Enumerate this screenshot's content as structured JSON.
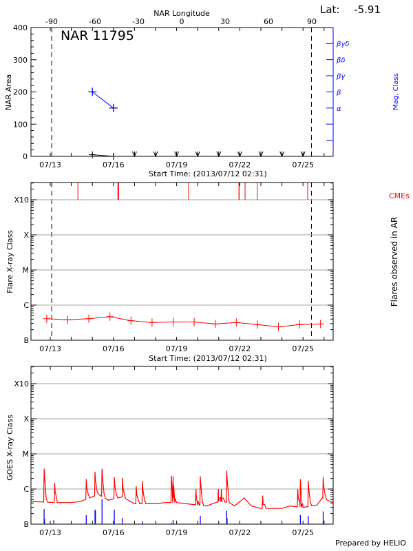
{
  "header": {
    "lat_label": "Lat:",
    "lat_value": "-5.91",
    "region_title": "NAR 11795",
    "footer": "Prepared by HELIO"
  },
  "colors": {
    "area": "#000000",
    "mag_class": "#0000ff",
    "flares": "#ff0000",
    "cmes": "#ff0000",
    "goes": "#ff0000",
    "goes_events": "#0000ff",
    "grid": "#a0a0a0"
  },
  "chart_data": [
    {
      "type": "line",
      "title": "NAR 11795",
      "xlabel": "Start Time: (2013/07/12 02:31)",
      "ylabel": "NAR Area",
      "y2label": "Mag. Class",
      "top_xlabel": "NAR Longitude",
      "xlim": [
        "2013-07-12T02:31",
        "2013-07-26T10:30"
      ],
      "xticks": [
        {
          "t": "2013-07-13T00:00",
          "label": "07/13"
        },
        {
          "t": "2013-07-16T00:00",
          "label": "07/16"
        },
        {
          "t": "2013-07-19T00:00",
          "label": "07/19"
        },
        {
          "t": "2013-07-22T00:00",
          "label": "07/22"
        },
        {
          "t": "2013-07-25T00:00",
          "label": "07/25"
        }
      ],
      "ylim": [
        0,
        400
      ],
      "yticks": [
        {
          "v": 0,
          "label": "0"
        },
        {
          "v": 100,
          "label": "100"
        },
        {
          "v": 200,
          "label": "200"
        },
        {
          "v": 300,
          "label": "300"
        },
        {
          "v": 400,
          "label": "400"
        }
      ],
      "longitude_ticks": [
        {
          "v": -90,
          "label": "-90"
        },
        {
          "v": -60,
          "label": "-60"
        },
        {
          "v": -30,
          "label": "-30"
        },
        {
          "v": 0,
          "label": "0"
        },
        {
          "v": 30,
          "label": "30"
        },
        {
          "v": 60,
          "label": "60"
        },
        {
          "v": 90,
          "label": "90"
        }
      ],
      "mag_class_axis": [
        {
          "level": 1,
          "label": ""
        },
        {
          "level": 2,
          "label": ""
        },
        {
          "level": 3,
          "label": "α"
        },
        {
          "level": 4,
          "label": "β"
        },
        {
          "level": 5,
          "label": "βγ"
        },
        {
          "level": 6,
          "label": "βδ"
        },
        {
          "level": 7,
          "label": "βγδ"
        }
      ],
      "area_series": [
        {
          "t": "2013-07-15T00:00",
          "v": 5
        },
        {
          "t": "2013-07-16T00:00",
          "v": 0
        }
      ],
      "mag_class_series": [
        {
          "t": "2013-07-15T00:00",
          "class": "β",
          "level": 4
        },
        {
          "t": "2013-07-16T00:00",
          "class": "α",
          "level": 3
        }
      ],
      "no_data_markers": [
        "2013-07-17T00:00",
        "2013-07-18T00:00",
        "2013-07-19T00:00",
        "2013-07-20T00:00",
        "2013-07-21T00:00",
        "2013-07-22T00:00",
        "2013-07-23T00:00",
        "2013-07-24T00:00",
        "2013-07-25T00:00"
      ],
      "limb_times": [
        "2013-07-13T01:40",
        "2013-07-25T09:40"
      ]
    },
    {
      "type": "line",
      "xlabel": "Start Time: (2013/07/12 02:31)",
      "ylabel": "Flare X-ray Class",
      "y2label": "Flares observed in AR",
      "cme_label": "CMEs",
      "yscale": "log",
      "ylim": [
        1e-07,
        0.003
      ],
      "class_ticks": [
        {
          "flux": 1e-07,
          "label": "B"
        },
        {
          "flux": 1e-06,
          "label": "C"
        },
        {
          "flux": 1e-05,
          "label": "M"
        },
        {
          "flux": 0.0001,
          "label": "X"
        },
        {
          "flux": 0.001,
          "label": "X10"
        }
      ],
      "grid": true,
      "flare_series": [
        {
          "t": "2013-07-12T20:00",
          "flux": 4.1e-07
        },
        {
          "t": "2013-07-13T20:00",
          "flux": 3.8e-07
        },
        {
          "t": "2013-07-14T20:00",
          "flux": 4.1e-07
        },
        {
          "t": "2013-07-15T20:00",
          "flux": 4.7e-07
        },
        {
          "t": "2013-07-16T20:00",
          "flux": 3.6e-07
        },
        {
          "t": "2013-07-17T20:00",
          "flux": 3.2e-07
        },
        {
          "t": "2013-07-18T20:00",
          "flux": 3.3e-07
        },
        {
          "t": "2013-07-19T20:00",
          "flux": 3.3e-07
        },
        {
          "t": "2013-07-20T20:00",
          "flux": 2.9e-07
        },
        {
          "t": "2013-07-21T20:00",
          "flux": 3.2e-07
        },
        {
          "t": "2013-07-22T20:00",
          "flux": 2.8e-07
        },
        {
          "t": "2013-07-23T20:00",
          "flux": 2.4e-07
        },
        {
          "t": "2013-07-24T20:00",
          "flux": 2.8e-07
        },
        {
          "t": "2013-07-25T20:00",
          "flux": 2.9e-07
        }
      ],
      "cme_times": [
        "2013-07-14T07:30",
        "2013-07-16T05:00",
        "2013-07-16T06:00",
        "2013-07-19T13:40",
        "2013-07-21T23:00",
        "2013-07-21T23:15",
        "2013-07-22T06:00",
        "2013-07-22T20:00",
        "2013-07-25T05:20"
      ],
      "limb_times": [
        "2013-07-13T01:40",
        "2013-07-25T09:40"
      ]
    },
    {
      "type": "line",
      "ylabel": "GOES X-ray Class",
      "yscale": "log",
      "ylim": [
        1e-07,
        0.003
      ],
      "grid": true,
      "background": [
        {
          "t": "2013-07-12T02:31",
          "flux": 4.4e-07
        },
        {
          "t": "2013-07-13T08:00",
          "flux": 4.1e-07
        },
        {
          "t": "2013-07-14T00:00",
          "flux": 4.1e-07
        },
        {
          "t": "2013-07-14T10:00",
          "flux": 4.4e-07
        },
        {
          "t": "2013-07-15T00:00",
          "flux": 6e-07
        },
        {
          "t": "2013-07-15T07:00",
          "flux": 7e-07
        },
        {
          "t": "2013-07-15T18:00",
          "flux": 4.8e-07
        },
        {
          "t": "2013-07-16T10:00",
          "flux": 6e-07
        },
        {
          "t": "2013-07-17T00:00",
          "flux": 3.8e-07
        },
        {
          "t": "2013-07-18T00:00",
          "flux": 3.8e-07
        },
        {
          "t": "2013-07-18T11:00",
          "flux": 4.1e-07
        },
        {
          "t": "2013-07-19T00:00",
          "flux": 4.1e-07
        },
        {
          "t": "2013-07-20T00:00",
          "flux": 3.5e-07
        },
        {
          "t": "2013-07-20T10:00",
          "flux": 3.3e-07
        },
        {
          "t": "2013-07-21T00:00",
          "flux": 4.4e-07
        },
        {
          "t": "2013-07-21T12:00",
          "flux": 4.1e-07
        },
        {
          "t": "2013-07-21T18:00",
          "flux": 3.3e-07
        },
        {
          "t": "2013-07-22T05:00",
          "flux": 5.6e-07
        },
        {
          "t": "2013-07-22T13:00",
          "flux": 3.3e-07
        },
        {
          "t": "2013-07-23T00:00",
          "flux": 2.8e-07
        },
        {
          "t": "2013-07-24T00:00",
          "flux": 2.8e-07
        },
        {
          "t": "2013-07-24T09:00",
          "flux": 3.3e-07
        },
        {
          "t": "2013-07-25T00:00",
          "flux": 3e-07
        },
        {
          "t": "2013-07-25T16:00",
          "flux": 3.5e-07
        },
        {
          "t": "2013-07-25T22:00",
          "flux": 5.6e-07
        },
        {
          "t": "2013-07-26T10:00",
          "flux": 4.1e-07
        }
      ],
      "peaks": [
        {
          "t": "2013-07-12T17:00",
          "flux": 3.8e-06
        },
        {
          "t": "2013-07-13T05:00",
          "flux": 1.5e-06
        },
        {
          "t": "2013-07-14T17:00",
          "flux": 1.9e-06
        },
        {
          "t": "2013-07-15T03:00",
          "flux": 3.1e-06
        },
        {
          "t": "2013-07-15T11:00",
          "flux": 3.8e-06
        },
        {
          "t": "2013-07-16T01:00",
          "flux": 2.2e-06
        },
        {
          "t": "2013-07-16T10:00",
          "flux": 2.1e-06
        },
        {
          "t": "2013-07-17T02:00",
          "flux": 1.2e-06
        },
        {
          "t": "2013-07-17T09:00",
          "flux": 1.7e-06
        },
        {
          "t": "2013-07-18T18:00",
          "flux": 2.4e-06
        },
        {
          "t": "2013-07-18T20:00",
          "flux": 2.3e-06
        },
        {
          "t": "2013-07-19T22:00",
          "flux": 1e-06
        },
        {
          "t": "2013-07-20T03:00",
          "flux": 2.3e-06
        },
        {
          "t": "2013-07-20T23:30",
          "flux": 1e-06
        },
        {
          "t": "2013-07-21T03:00",
          "flux": 1e-06
        },
        {
          "t": "2013-07-21T09:00",
          "flux": 3.3e-06
        },
        {
          "t": "2013-07-23T02:00",
          "flux": 6.5e-07
        },
        {
          "t": "2013-07-24T18:00",
          "flux": 1e-06
        },
        {
          "t": "2013-07-24T21:00",
          "flux": 1.9e-06
        },
        {
          "t": "2013-07-25T06:00",
          "flux": 1.7e-06
        },
        {
          "t": "2013-07-25T23:00",
          "flux": 2.2e-06
        }
      ],
      "events": [
        {
          "t": "2013-07-12T17:00",
          "flux": 2.7e-07
        },
        {
          "t": "2013-07-12T17:30",
          "flux": 1.4e-07
        },
        {
          "t": "2013-07-13T04:00",
          "flux": 1.3e-07
        },
        {
          "t": "2013-07-14T17:00",
          "flux": 1.8e-07
        },
        {
          "t": "2013-07-15T03:00",
          "flux": 2.6e-07
        },
        {
          "t": "2013-07-15T03:30",
          "flux": 2.4e-07
        },
        {
          "t": "2013-07-15T11:00",
          "flux": 5.1e-07
        },
        {
          "t": "2013-07-16T01:00",
          "flux": 2.6e-07
        },
        {
          "t": "2013-07-16T10:00",
          "flux": 1.5e-07
        },
        {
          "t": "2013-07-17T09:00",
          "flux": 1.2e-07
        },
        {
          "t": "2013-07-18T18:00",
          "flux": 1.1e-07
        },
        {
          "t": "2013-07-18T20:00",
          "flux": 1.3e-07
        },
        {
          "t": "2013-07-20T03:00",
          "flux": 1.7e-07
        },
        {
          "t": "2013-07-21T09:00",
          "flux": 2.4e-07
        },
        {
          "t": "2013-07-21T09:30",
          "flux": 1.5e-07
        },
        {
          "t": "2013-07-24T21:00",
          "flux": 1.8e-07
        },
        {
          "t": "2013-07-25T06:00",
          "flux": 1.7e-07
        },
        {
          "t": "2013-07-25T23:00",
          "flux": 2.3e-07
        }
      ]
    }
  ]
}
